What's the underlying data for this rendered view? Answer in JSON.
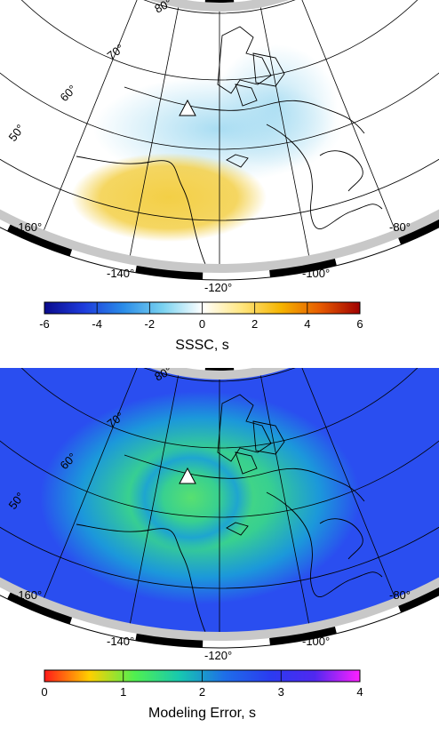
{
  "maps": [
    {
      "id": "sssc",
      "lat_labels": [
        "80°",
        "70°",
        "60°",
        "50°"
      ],
      "lon_labels": [
        "-160°",
        "-140°",
        "-120°",
        "-100°",
        "-80°"
      ],
      "station_icon": "triangle-station-icon",
      "colorbar": {
        "title": "SSSC, s",
        "ticks": [
          "-6",
          "-4",
          "-2",
          "0",
          "2",
          "4",
          "6"
        ],
        "range": [
          -6,
          6
        ],
        "colors": [
          "#0a0a8c",
          "#1e3cdc",
          "#2a8ce8",
          "#7ad2f0",
          "#ffffff",
          "#ffe680",
          "#f5b400",
          "#e65a00",
          "#a00000"
        ]
      },
      "field_colors": {
        "background": "#ffffff",
        "negative": "#9ad7f0",
        "positive": "#f3cf46"
      }
    },
    {
      "id": "modeling-error",
      "lat_labels": [
        "80°",
        "70°",
        "60°",
        "50°"
      ],
      "lon_labels": [
        "-160°",
        "-140°",
        "-120°",
        "-100°",
        "-80°"
      ],
      "station_icon": "triangle-station-icon",
      "colorbar": {
        "title": "Modeling Error, s",
        "ticks": [
          "0",
          "1",
          "2",
          "3",
          "4"
        ],
        "range": [
          0,
          4
        ],
        "colors": [
          "#ff1a1a",
          "#ffd000",
          "#50f050",
          "#17c8b0",
          "#1e6ee8",
          "#2a3cf0",
          "#5028f0",
          "#ff20ff"
        ]
      },
      "field_colors": {
        "background": "#2a4ef0",
        "halo": "#1aa0d8",
        "center": "#58e070"
      }
    }
  ]
}
